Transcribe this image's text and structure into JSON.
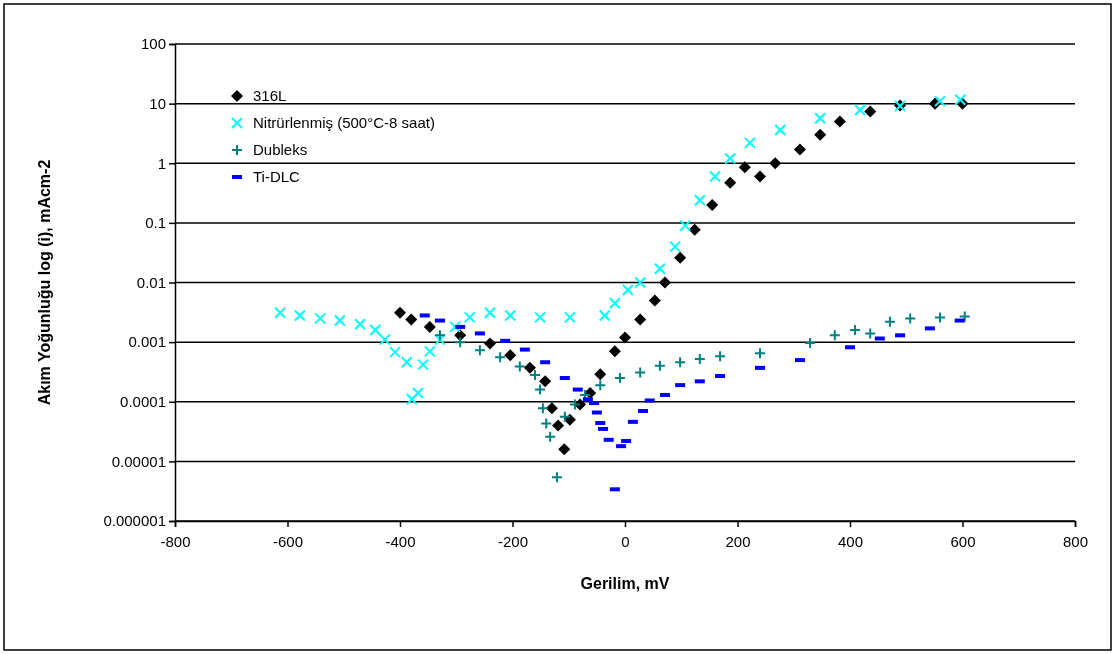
{
  "chart_data": {
    "type": "scatter",
    "xlabel": "Gerilim, mV",
    "ylabel": "Akım Yoğunluğu log (i), mAcm-2",
    "log": "y",
    "grid": "y",
    "legend": "top left",
    "xlim": [
      -800,
      800
    ],
    "xticks": [
      -800,
      -600,
      -400,
      -200,
      0,
      200,
      400,
      600,
      800
    ],
    "ylim": [
      1e-06,
      100
    ],
    "yticks": [
      {
        "value": 1e-06,
        "label": "0.000001"
      },
      {
        "value": 1e-05,
        "label": "0.00001"
      },
      0.0001,
      0.001,
      0.01,
      0.1,
      1,
      10,
      100
    ],
    "series": [
      {
        "name": "316L",
        "color": "#000000",
        "marker": "diamond",
        "x": [
          -400,
          -380,
          -347,
          -293,
          -240,
          -204,
          -169,
          -142,
          -130,
          -119,
          -108,
          -98,
          -80,
          -62,
          -44,
          -18,
          0,
          27,
          53,
          71,
          98,
          124,
          155,
          187,
          213,
          240,
          267,
          311,
          347,
          382,
          436,
          489,
          551,
          600
        ],
        "values": [
          0.0031,
          0.0024,
          0.0018,
          0.0013,
          0.00095,
          0.0006,
          0.00037,
          0.00022,
          7.8e-05,
          4e-05,
          1.6e-05,
          5e-05,
          9e-05,
          0.00014,
          0.00029,
          0.0007,
          0.0012,
          0.0024,
          0.005,
          0.01,
          0.026,
          0.077,
          0.2,
          0.47,
          0.86,
          0.6,
          1,
          1.7,
          3,
          5,
          7.4,
          9.3,
          10,
          10
        ]
      },
      {
        "name": "Nitrürlenmiş (500°C-8 saat)",
        "color": "#00ffff",
        "marker": "x",
        "x": [
          -613,
          -578,
          -542,
          -507,
          -471,
          -444,
          -427,
          -409,
          -388,
          -379,
          -368,
          -359,
          -347,
          -329,
          -302,
          -276,
          -240,
          -204,
          -151,
          -98,
          -36,
          -18,
          5,
          27,
          62,
          89,
          107,
          133,
          160,
          187,
          222,
          276,
          347,
          418,
          489,
          560,
          596
        ],
        "values": [
          0.0031,
          0.0028,
          0.0025,
          0.0023,
          0.002,
          0.0016,
          0.0011,
          0.00068,
          0.00046,
          0.00011,
          0.00014,
          0.00042,
          0.0007,
          0.0011,
          0.0018,
          0.0026,
          0.0031,
          0.0028,
          0.0026,
          0.0026,
          0.0028,
          0.0045,
          0.0075,
          0.01,
          0.017,
          0.04,
          0.09,
          0.24,
          0.6,
          1.2,
          2.2,
          3.6,
          5.7,
          7.8,
          9.1,
          11,
          11.6
        ]
      },
      {
        "name": "Dubleks",
        "color": "#008080",
        "marker": "cross",
        "x": [
          -329,
          -293,
          -258,
          -222,
          -187,
          -160,
          -151,
          -146,
          -140,
          -133,
          -121,
          -107,
          -89,
          -71,
          -44,
          -9,
          27,
          62,
          98,
          133,
          169,
          240,
          329,
          373,
          409,
          436,
          471,
          507,
          560,
          604
        ],
        "values": [
          0.0013,
          0.001,
          0.00073,
          0.00056,
          0.00039,
          0.00028,
          0.00016,
          7.8e-05,
          4.3e-05,
          2.6e-05,
          5.4e-06,
          5.6e-05,
          9e-05,
          0.00013,
          0.00019,
          0.00025,
          0.00031,
          0.0004,
          0.00046,
          0.00052,
          0.00058,
          0.00065,
          0.00097,
          0.0013,
          0.0016,
          0.0014,
          0.0022,
          0.0025,
          0.0026,
          0.0027
        ]
      },
      {
        "name": "Ti-DLC",
        "color": "#0000ff",
        "marker": "square",
        "x": [
          -356,
          -329,
          -293,
          -258,
          -213,
          -178,
          -142,
          -107,
          -84,
          -66,
          -55,
          -50,
          -44,
          -39,
          -29,
          -18,
          -7,
          2,
          14,
          32,
          44,
          71,
          98,
          133,
          169,
          240,
          311,
          400,
          453,
          489,
          542,
          595
        ],
        "values": [
          0.0028,
          0.0023,
          0.0018,
          0.0014,
          0.00105,
          0.00075,
          0.00046,
          0.00025,
          0.00016,
          0.00011,
          9.5e-05,
          6.6e-05,
          4.4e-05,
          3.5e-05,
          2.3e-05,
          3.4e-06,
          1.8e-05,
          2.2e-05,
          4.6e-05,
          7e-05,
          0.000105,
          0.00013,
          0.00019,
          0.00022,
          0.00027,
          0.00037,
          0.0005,
          0.00082,
          0.00115,
          0.0013,
          0.0017,
          0.0023
        ]
      }
    ]
  }
}
